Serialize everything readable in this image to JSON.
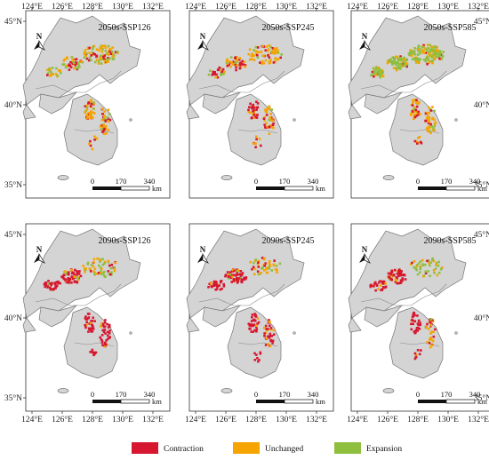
{
  "colors": {
    "land": "#d4d4d4",
    "border": "#777777",
    "contraction": "#d7172f",
    "unchanged": "#f5a400",
    "expansion": "#8ebf3f"
  },
  "axes": {
    "x_ticks": [
      "124°E",
      "126°E",
      "128°E",
      "130°E",
      "132°E"
    ],
    "y_ticks": [
      "45°N",
      "40°N",
      "35°N"
    ]
  },
  "north_label": "N",
  "scale_bar": {
    "labels": [
      "0",
      "170",
      "340"
    ],
    "unit": "km"
  },
  "panels": [
    {
      "title": "2050s-SSP126"
    },
    {
      "title": "2050s-SSP245"
    },
    {
      "title": "2050s-SSP585"
    },
    {
      "title": "2090s-SSP126"
    },
    {
      "title": "2090s-SSP245"
    },
    {
      "title": "2090s-SSP585"
    }
  ],
  "legend": [
    {
      "label": "Contraction",
      "color": "#d7172f"
    },
    {
      "label": "Unchanged",
      "color": "#f5a400"
    },
    {
      "label": "Expansion",
      "color": "#8ebf3f"
    }
  ]
}
